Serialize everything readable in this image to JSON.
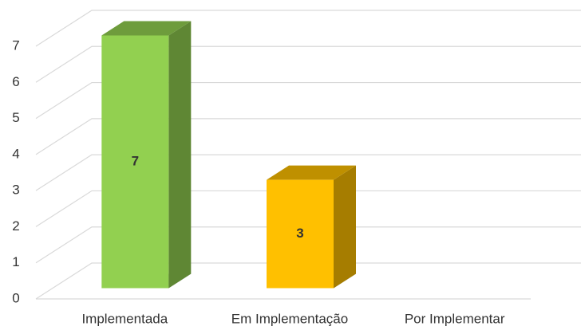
{
  "chart_data": {
    "type": "bar3d",
    "categories": [
      "Implementada",
      "Em Implementação",
      "Por Implementar"
    ],
    "values": [
      7,
      3,
      0
    ],
    "colors": [
      "#92d050",
      "#ffc000",
      null
    ],
    "ylim": [
      0,
      7
    ],
    "yticks": [
      0,
      1,
      2,
      3,
      4,
      5,
      6,
      7
    ],
    "grid": true,
    "data_labels": true
  }
}
